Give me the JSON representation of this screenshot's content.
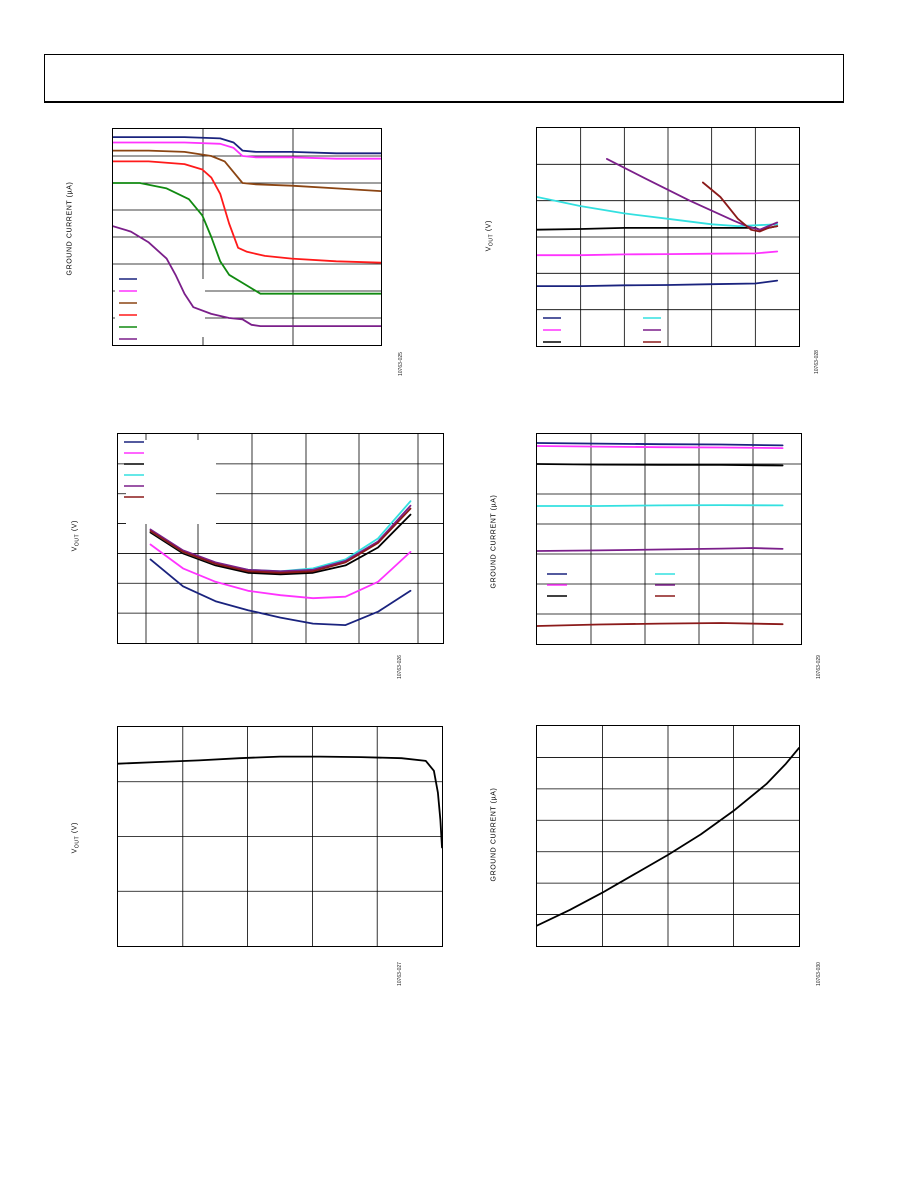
{
  "header": {
    "text": ""
  },
  "charts": [
    {
      "id": "fig25",
      "ylabel": "GROUND CURRENT (µA)",
      "figure_id": "10763-025",
      "legend_labels": [
        "",
        "",
        "",
        "",
        "",
        ""
      ],
      "colors": [
        "#1a237e",
        "#ff33ff",
        "#8b4513",
        "#ff1a1a",
        "#118a11",
        "#7b1f8a"
      ],
      "chart_data": {
        "type": "line",
        "title": "",
        "xlabel": "",
        "ylabel": "GROUND CURRENT (µA)",
        "xlim": [
          0,
          3
        ],
        "ylim": [
          0,
          8
        ],
        "grid": true,
        "legend": "bottom-left",
        "series": [
          {
            "name": "",
            "x": [
              0,
              0.4,
              0.8,
              1.2,
              1.35,
              1.45,
              1.6,
              2.0,
              2.5,
              3.0
            ],
            "values": [
              7.7,
              7.7,
              7.7,
              7.65,
              7.5,
              7.2,
              7.15,
              7.15,
              7.1,
              7.1
            ]
          },
          {
            "name": "",
            "x": [
              0,
              0.4,
              0.8,
              1.2,
              1.35,
              1.45,
              1.6,
              2.0,
              2.5,
              3.0
            ],
            "values": [
              7.5,
              7.5,
              7.5,
              7.45,
              7.3,
              7.0,
              6.95,
              6.95,
              6.9,
              6.9
            ]
          },
          {
            "name": "",
            "x": [
              0,
              0.4,
              0.8,
              1.1,
              1.25,
              1.35,
              1.45,
              1.6,
              2.0,
              2.5,
              3.0
            ],
            "values": [
              7.2,
              7.2,
              7.15,
              7.0,
              6.8,
              6.4,
              6.0,
              5.95,
              5.9,
              5.8,
              5.7
            ]
          },
          {
            "name": "",
            "x": [
              0,
              0.4,
              0.8,
              1.0,
              1.1,
              1.2,
              1.3,
              1.4,
              1.5,
              1.7,
              2.0,
              2.5,
              3.0
            ],
            "values": [
              6.8,
              6.8,
              6.7,
              6.5,
              6.2,
              5.6,
              4.5,
              3.6,
              3.45,
              3.3,
              3.2,
              3.1,
              3.05
            ]
          },
          {
            "name": "",
            "x": [
              0,
              0.3,
              0.6,
              0.85,
              1.0,
              1.1,
              1.2,
              1.3,
              1.45,
              1.65,
              2.0,
              2.5,
              3.0
            ],
            "values": [
              6.0,
              6.0,
              5.8,
              5.4,
              4.8,
              4.0,
              3.1,
              2.6,
              2.3,
              1.9,
              1.9,
              1.9,
              1.9
            ]
          },
          {
            "name": "",
            "x": [
              0,
              0.2,
              0.4,
              0.6,
              0.7,
              0.8,
              0.9,
              1.1,
              1.3,
              1.45,
              1.55,
              1.65,
              2.0,
              2.5,
              3.0
            ],
            "values": [
              4.4,
              4.2,
              3.8,
              3.2,
              2.6,
              1.9,
              1.4,
              1.15,
              1.0,
              0.95,
              0.75,
              0.7,
              0.7,
              0.7,
              0.7
            ]
          }
        ]
      }
    },
    {
      "id": "fig28",
      "ylabel": "VOUT (V)",
      "figure_id": "10763-028",
      "legend_labels": [
        "",
        "",
        "",
        "",
        "",
        ""
      ],
      "colors": [
        "#1a237e",
        "#ff33ff",
        "#000000",
        "#33e0e0",
        "#7b1f8a",
        "#8b1a1a"
      ],
      "chart_data": {
        "type": "line",
        "title": "",
        "xlabel": "",
        "ylabel": "VOUT (V)",
        "xlim": [
          0,
          6
        ],
        "ylim": [
          0,
          6
        ],
        "grid": true,
        "legend": "bottom-left",
        "series": [
          {
            "name": "",
            "x": [
              0,
              1,
              2,
              3,
              4,
              5,
              5.5
            ],
            "values": [
              1.65,
              1.65,
              1.67,
              1.68,
              1.7,
              1.72,
              1.8
            ]
          },
          {
            "name": "",
            "x": [
              0,
              1,
              2,
              3,
              4,
              5,
              5.5
            ],
            "values": [
              2.5,
              2.5,
              2.52,
              2.53,
              2.54,
              2.55,
              2.6
            ]
          },
          {
            "name": "",
            "x": [
              0,
              1,
              2,
              3,
              4,
              5,
              5.1,
              5.3,
              5.5
            ],
            "values": [
              3.2,
              3.22,
              3.25,
              3.25,
              3.25,
              3.25,
              3.2,
              3.25,
              3.3
            ]
          },
          {
            "name": "",
            "x": [
              0,
              1,
              2,
              3,
              4,
              4.6,
              5.5
            ],
            "values": [
              4.1,
              3.85,
              3.65,
              3.5,
              3.35,
              3.3,
              3.35
            ]
          },
          {
            "name": "",
            "x": [
              1.6,
              2.5,
              3.5,
              4.5,
              4.8,
              5.1,
              5.5
            ],
            "values": [
              5.15,
              4.6,
              4.0,
              3.45,
              3.3,
              3.2,
              3.4
            ]
          },
          {
            "name": "",
            "x": [
              3.8,
              4.2,
              4.6,
              4.9,
              5.1,
              5.3,
              5.5
            ],
            "values": [
              4.5,
              4.1,
              3.5,
              3.2,
              3.15,
              3.25,
              3.3
            ]
          }
        ]
      }
    },
    {
      "id": "fig26",
      "ylabel": "VOUT (V)",
      "figure_id": "10763-026",
      "legend_labels": [
        "",
        "",
        "",
        "",
        "",
        ""
      ],
      "colors": [
        "#1a237e",
        "#ff33ff",
        "#000000",
        "#33e0e0",
        "#7b1f8a",
        "#8b1a1a"
      ],
      "chart_data": {
        "type": "line",
        "title": "",
        "xlabel": "",
        "ylabel": "VOUT (V)",
        "xlim": [
          0,
          5
        ],
        "ylim": [
          0,
          7
        ],
        "grid": true,
        "legend": "top-left",
        "series": [
          {
            "name": "",
            "x": [
              0.5,
              1,
              1.5,
              2,
              2.5,
              3,
              3.5,
              4,
              4.5
            ],
            "values": [
              2.8,
              1.9,
              1.4,
              1.1,
              0.85,
              0.65,
              0.6,
              1.05,
              1.75
            ]
          },
          {
            "name": "",
            "x": [
              0.5,
              1,
              1.5,
              2,
              2.5,
              3,
              3.5,
              4,
              4.5
            ],
            "values": [
              3.3,
              2.5,
              2.05,
              1.75,
              1.6,
              1.5,
              1.55,
              2.05,
              3.05
            ]
          },
          {
            "name": "",
            "x": [
              0.5,
              1,
              1.5,
              2,
              2.5,
              3,
              3.5,
              4,
              4.5
            ],
            "values": [
              3.7,
              3.0,
              2.6,
              2.35,
              2.3,
              2.35,
              2.6,
              3.2,
              4.3
            ]
          },
          {
            "name": "",
            "x": [
              0.5,
              1,
              1.5,
              2,
              2.5,
              3,
              3.5,
              4,
              4.5
            ],
            "values": [
              3.75,
              3.05,
              2.65,
              2.45,
              2.4,
              2.5,
              2.8,
              3.5,
              4.75
            ]
          },
          {
            "name": "",
            "x": [
              0.5,
              1,
              1.5,
              2,
              2.5,
              3,
              3.5,
              4,
              4.5
            ],
            "values": [
              3.8,
              3.1,
              2.7,
              2.45,
              2.4,
              2.45,
              2.75,
              3.4,
              4.6
            ]
          },
          {
            "name": "",
            "x": [
              0.5,
              1,
              1.5,
              2,
              2.5,
              3,
              3.5,
              4,
              4.5
            ],
            "values": [
              3.75,
              3.05,
              2.65,
              2.4,
              2.35,
              2.4,
              2.7,
              3.35,
              4.5
            ]
          }
        ]
      }
    },
    {
      "id": "fig29",
      "ylabel": "GROUND CURRENT (µA)",
      "figure_id": "10763-029",
      "legend_labels": [
        "",
        "",
        "",
        "",
        "",
        ""
      ],
      "colors": [
        "#1a237e",
        "#ff33ff",
        "#000000",
        "#33e0e0",
        "#7b1f8a",
        "#8b1a1a"
      ],
      "chart_data": {
        "type": "line",
        "title": "",
        "xlabel": "",
        "ylabel": "GROUND CURRENT (µA)",
        "xlim": [
          0,
          4.3
        ],
        "ylim": [
          0,
          7
        ],
        "grid": true,
        "legend": "bottom-left",
        "series": [
          {
            "name": "",
            "x": [
              0,
              1,
              2,
              3,
              4
            ],
            "values": [
              6.7,
              6.68,
              6.66,
              6.65,
              6.62
            ]
          },
          {
            "name": "",
            "x": [
              0,
              1,
              2,
              3,
              4
            ],
            "values": [
              6.6,
              6.58,
              6.56,
              6.55,
              6.53
            ]
          },
          {
            "name": "",
            "x": [
              0,
              1,
              2,
              3,
              4
            ],
            "values": [
              6.0,
              5.98,
              5.97,
              5.97,
              5.95
            ]
          },
          {
            "name": "",
            "x": [
              0,
              1,
              2,
              3,
              4
            ],
            "values": [
              4.6,
              4.6,
              4.62,
              4.63,
              4.62
            ]
          },
          {
            "name": "",
            "x": [
              0,
              1,
              2,
              3,
              3.5,
              4
            ],
            "values": [
              3.1,
              3.12,
              3.15,
              3.18,
              3.2,
              3.17
            ]
          },
          {
            "name": "",
            "x": [
              0,
              1,
              2,
              3,
              4
            ],
            "values": [
              0.6,
              0.65,
              0.68,
              0.7,
              0.66
            ]
          }
        ]
      }
    },
    {
      "id": "fig27",
      "ylabel": "VOUT (V)",
      "figure_id": "10763-027",
      "legend_labels": [],
      "colors": [
        "#000000"
      ],
      "chart_data": {
        "type": "line",
        "title": "",
        "xlabel": "",
        "ylabel": "VOUT (V)",
        "xlim": [
          0,
          4
        ],
        "ylim": [
          0,
          4
        ],
        "grid": true,
        "legend": "none",
        "series": [
          {
            "name": "",
            "x": [
              0,
              0.5,
              1,
              1.5,
              2,
              2.5,
              3,
              3.5,
              3.8,
              3.9,
              3.95,
              3.98,
              4.0
            ],
            "values": [
              3.33,
              3.36,
              3.39,
              3.43,
              3.46,
              3.46,
              3.45,
              3.43,
              3.38,
              3.2,
              2.8,
              2.3,
              1.8
            ]
          }
        ]
      }
    },
    {
      "id": "fig30",
      "ylabel": "GROUND CURRENT (µA)",
      "figure_id": "10763-030",
      "legend_labels": [],
      "colors": [
        "#000000"
      ],
      "chart_data": {
        "type": "line",
        "title": "",
        "xlabel": "",
        "ylabel": "GROUND CURRENT (µA)",
        "xlim": [
          0,
          4
        ],
        "ylim": [
          0,
          7
        ],
        "grid": true,
        "legend": "none",
        "series": [
          {
            "name": "",
            "x": [
              0,
              0.5,
              1,
              1.5,
              2,
              2.5,
              3,
              3.5,
              3.8,
              4.0
            ],
            "values": [
              0.65,
              1.15,
              1.7,
              2.3,
              2.9,
              3.55,
              4.3,
              5.15,
              5.8,
              6.3
            ]
          }
        ]
      }
    }
  ]
}
